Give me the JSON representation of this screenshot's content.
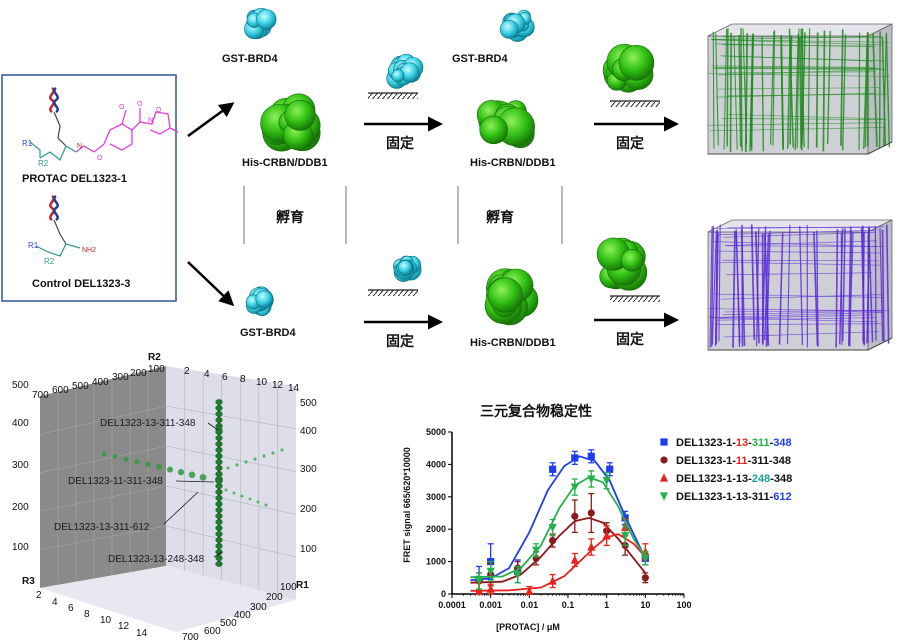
{
  "compounds": {
    "protac_label": "PROTAC DEL1323-1",
    "control_label": "Control DEL1323-3",
    "r1": "R1",
    "r2": "R2",
    "nh2": "NH2"
  },
  "workflow": {
    "gst": "GST-BRD4",
    "his": "His-CRBN/DDB1",
    "incubate": "孵育",
    "immobilize": "固定"
  },
  "scatter3d": {
    "axis_r1": "R1",
    "axis_r2": "R2",
    "axis_r3": "R3",
    "r2_ticks": [
      "2",
      "4",
      "6",
      "8",
      "10",
      "12",
      "14"
    ],
    "r3_ticks": [
      "2",
      "4",
      "6",
      "8",
      "10",
      "12",
      "14"
    ],
    "back_ticks": [
      "700",
      "600",
      "500",
      "400",
      "300",
      "200",
      "100"
    ],
    "r1_ticks": [
      "100",
      "200",
      "300",
      "400",
      "500",
      "600",
      "700"
    ],
    "z_left_ticks": [
      "100",
      "200",
      "300",
      "400",
      "500"
    ],
    "z_right_ticks": [
      "100",
      "200",
      "300",
      "400",
      "500"
    ],
    "annotations": [
      "DEL1323-13-311-348",
      "DEL1323-11-311-348",
      "DEL1323-13-311-612",
      "DEL1323-13-248-348"
    ]
  },
  "chart_data": {
    "type": "scatter",
    "title": "三元复合物稳定性",
    "xlabel": "[PROTAC] / μM",
    "ylabel": "FRET signal 665/620*10000",
    "xscale": "log",
    "xlim": [
      0.0001,
      100
    ],
    "ylim": [
      0,
      5000
    ],
    "x_ticks": [
      "0.0001",
      "0.001",
      "0.01",
      "0.1",
      "1",
      "10",
      "100"
    ],
    "y_ticks": [
      "0",
      "1000",
      "2000",
      "3000",
      "4000",
      "5000"
    ],
    "legend_position": "top-right",
    "series": [
      {
        "name_parts": [
          {
            "text": "DEL1323-1-",
            "color": "#111111"
          },
          {
            "text": "13",
            "color": "#e8221b"
          },
          {
            "text": "-",
            "color": "#111111"
          },
          {
            "text": "311",
            "color": "#22b14c"
          },
          {
            "text": "-",
            "color": "#111111"
          },
          {
            "text": "348",
            "color": "#1f3cf0"
          }
        ],
        "color": "#1f3cf0",
        "marker": "square",
        "x": [
          0.0005,
          0.001,
          0.005,
          0.04,
          0.15,
          0.4,
          1.2,
          3,
          10
        ],
        "y": [
          450,
          1000,
          700,
          3850,
          4200,
          4250,
          3850,
          2350,
          1100
        ],
        "err": [
          400,
          550,
          350,
          200,
          200,
          200,
          200,
          200,
          200
        ],
        "fit": [
          [
            0.0003,
            430
          ],
          [
            0.001,
            480
          ],
          [
            0.003,
            800
          ],
          [
            0.01,
            1900
          ],
          [
            0.03,
            3200
          ],
          [
            0.08,
            3950
          ],
          [
            0.2,
            4250
          ],
          [
            0.5,
            4100
          ],
          [
            1.2,
            3500
          ],
          [
            3,
            2400
          ],
          [
            10,
            1100
          ]
        ]
      },
      {
        "name_parts": [
          {
            "text": "DEL1323-1-",
            "color": "#111111"
          },
          {
            "text": "11",
            "color": "#e8221b"
          },
          {
            "text": "-311-348",
            "color": "#111111"
          }
        ],
        "color": "#8b1a1a",
        "marker": "circle",
        "x": [
          0.0005,
          0.001,
          0.005,
          0.015,
          0.04,
          0.15,
          0.4,
          1,
          3,
          10
        ],
        "y": [
          400,
          600,
          800,
          1100,
          1650,
          2400,
          2500,
          1950,
          1500,
          500
        ],
        "err": [
          250,
          350,
          200,
          200,
          200,
          500,
          600,
          250,
          300,
          150
        ],
        "fit": [
          [
            0.0003,
            350
          ],
          [
            0.002,
            380
          ],
          [
            0.006,
            600
          ],
          [
            0.02,
            1150
          ],
          [
            0.06,
            1800
          ],
          [
            0.15,
            2250
          ],
          [
            0.35,
            2350
          ],
          [
            0.8,
            2200
          ],
          [
            2,
            1700
          ],
          [
            5,
            1100
          ],
          [
            10,
            650
          ]
        ]
      },
      {
        "name_parts": [
          {
            "text": "DEL1323-1-13-",
            "color": "#111111"
          },
          {
            "text": "248",
            "color": "#1a9e9e"
          },
          {
            "text": "-348",
            "color": "#111111"
          }
        ],
        "color": "#e8221b",
        "marker": "triangle-up",
        "x": [
          0.0005,
          0.001,
          0.01,
          0.04,
          0.15,
          0.4,
          1,
          3,
          10
        ],
        "y": [
          100,
          150,
          80,
          400,
          1050,
          1450,
          1800,
          2050,
          1300
        ],
        "err": [
          250,
          150,
          150,
          200,
          200,
          250,
          300,
          250,
          250
        ],
        "fit": [
          [
            0.0003,
            100
          ],
          [
            0.003,
            110
          ],
          [
            0.02,
            200
          ],
          [
            0.08,
            550
          ],
          [
            0.2,
            1000
          ],
          [
            0.5,
            1450
          ],
          [
            1,
            1750
          ],
          [
            2,
            1850
          ],
          [
            5,
            1550
          ],
          [
            10,
            1150
          ]
        ]
      },
      {
        "name_parts": [
          {
            "text": "DEL1323-1-13-311-",
            "color": "#111111"
          },
          {
            "text": "612",
            "color": "#1f3cf0"
          }
        ],
        "color": "#22b14c",
        "marker": "triangle-down",
        "x": [
          0.0005,
          0.001,
          0.005,
          0.015,
          0.04,
          0.15,
          0.4,
          1,
          3,
          10
        ],
        "y": [
          400,
          700,
          600,
          1350,
          2050,
          3300,
          3550,
          3500,
          1800,
          1100
        ],
        "err": [
          250,
          300,
          250,
          200,
          250,
          250,
          250,
          250,
          300,
          200
        ],
        "fit": [
          [
            0.0003,
            520
          ],
          [
            0.002,
            540
          ],
          [
            0.006,
            800
          ],
          [
            0.02,
            1500
          ],
          [
            0.06,
            2650
          ],
          [
            0.15,
            3350
          ],
          [
            0.35,
            3600
          ],
          [
            0.8,
            3450
          ],
          [
            2,
            2700
          ],
          [
            5,
            1700
          ],
          [
            10,
            1150
          ]
        ]
      }
    ]
  }
}
